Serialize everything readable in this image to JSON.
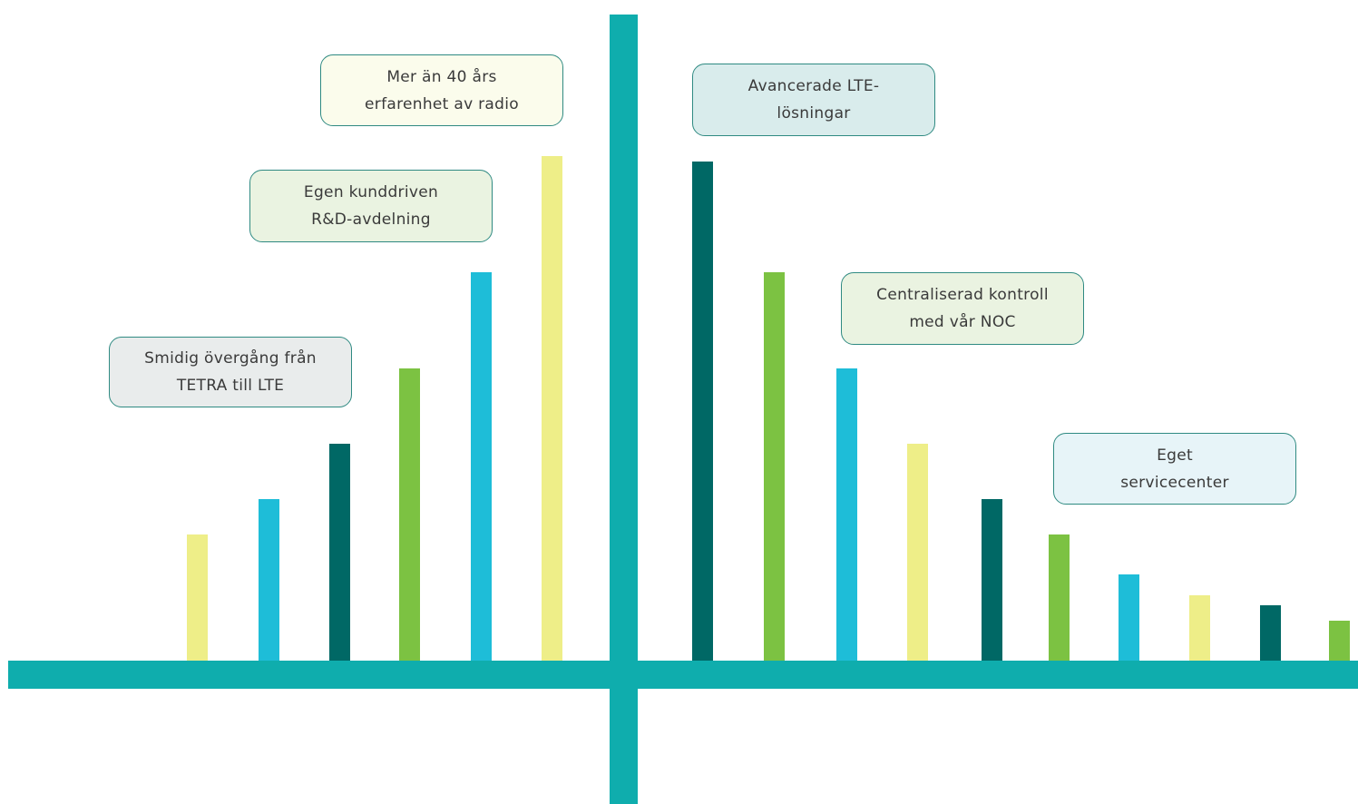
{
  "colors": {
    "axis": "#0fadad",
    "yellow": "#eeee88",
    "cyan": "#1ebdd8",
    "teal": "#006865",
    "green": "#7cc242",
    "callout_border": "#2f8a82",
    "callout_text": "#3a3a3a"
  },
  "bars": {
    "left": [
      {
        "level": 0.25,
        "color": "yellow"
      },
      {
        "level": 0.32,
        "color": "cyan"
      },
      {
        "level": 0.43,
        "color": "teal"
      },
      {
        "level": 0.58,
        "color": "green"
      },
      {
        "level": 0.77,
        "color": "cyan"
      },
      {
        "level": 1.0,
        "color": "yellow"
      }
    ],
    "right": [
      {
        "level": 0.99,
        "color": "teal"
      },
      {
        "level": 0.77,
        "color": "green"
      },
      {
        "level": 0.58,
        "color": "cyan"
      },
      {
        "level": 0.43,
        "color": "yellow"
      },
      {
        "level": 0.32,
        "color": "teal"
      },
      {
        "level": 0.25,
        "color": "green"
      },
      {
        "level": 0.17,
        "color": "cyan"
      },
      {
        "level": 0.13,
        "color": "yellow"
      },
      {
        "level": 0.11,
        "color": "teal"
      },
      {
        "level": 0.08,
        "color": "green"
      }
    ]
  },
  "callouts": {
    "smooth_transition": {
      "line1": "Smidig övergång från",
      "line2": "TETRA till LTE",
      "fill": "#e9ecec"
    },
    "rnd": {
      "line1": "Egen kunddriven",
      "line2": "R&D-avdelning",
      "fill": "#eaf3e1"
    },
    "experience": {
      "line1": "Mer än 40 års",
      "line2": "erfarenhet av radio",
      "fill": "#fbfcec"
    },
    "lte": {
      "line1": "Avancerade LTE-",
      "line2": "lösningar",
      "fill": "#d9ecec"
    },
    "noc": {
      "line1": "Centraliserad kontroll",
      "line2": "med vår NOC",
      "fill": "#eaf3e1"
    },
    "service": {
      "line1": "Eget",
      "line2": "servicecenter",
      "fill": "#e7f4f8"
    }
  }
}
